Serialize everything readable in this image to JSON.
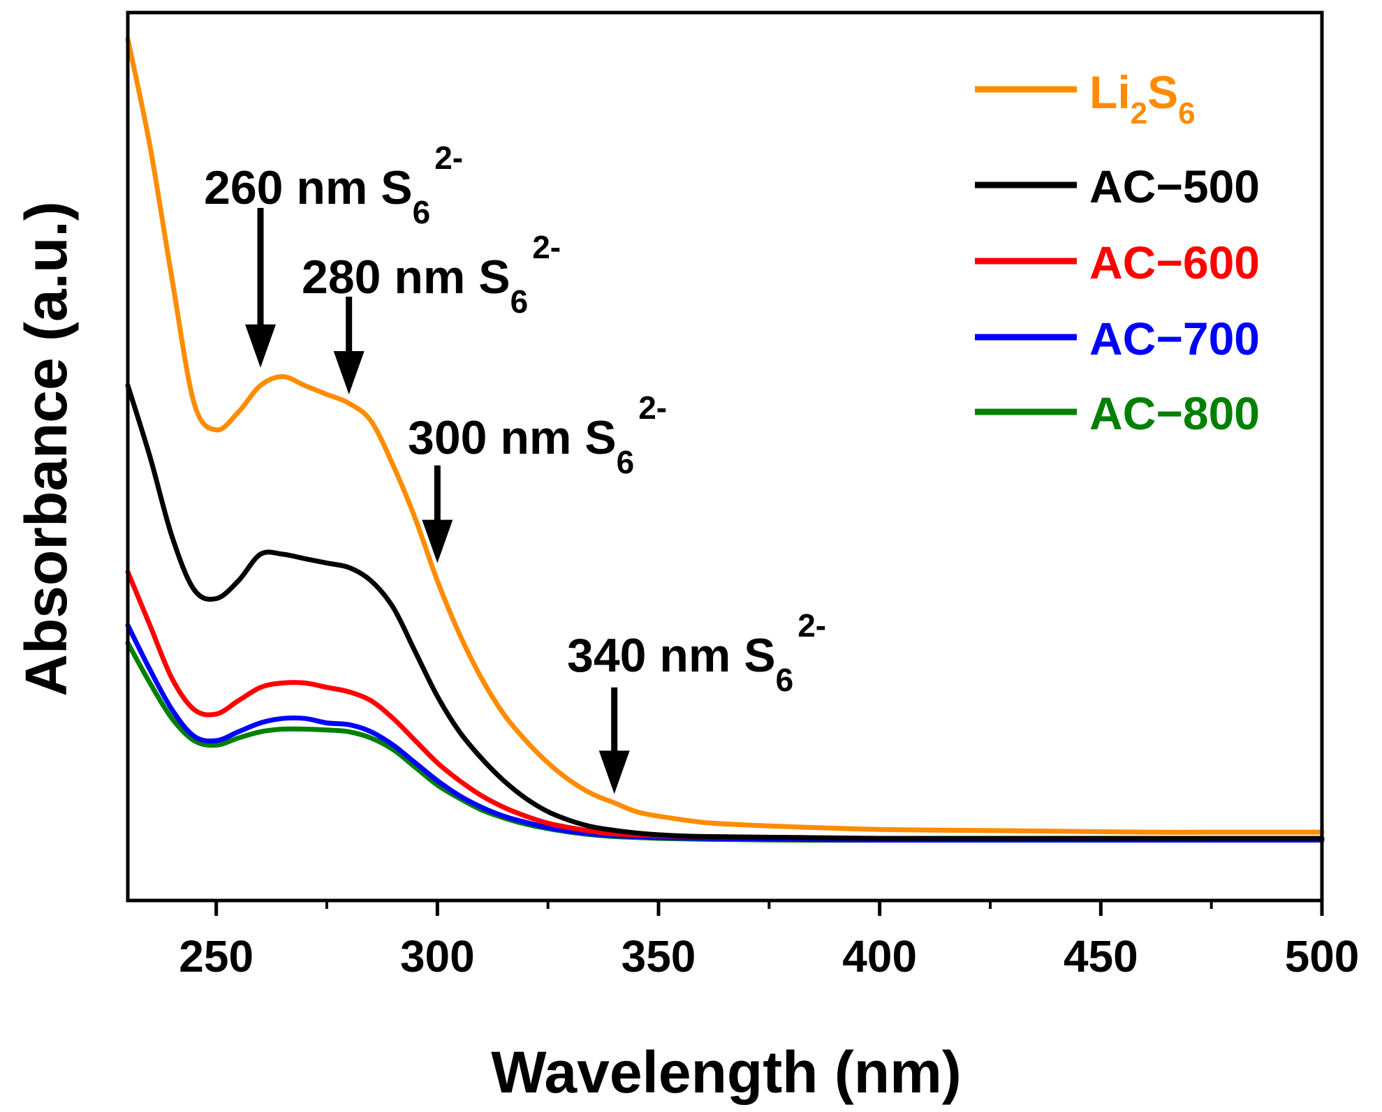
{
  "chart_data": {
    "type": "line",
    "title": "",
    "xlabel": "Wavelength (nm)",
    "ylabel": "Absorbance (a.u.)",
    "xlim": [
      230,
      500
    ],
    "ylim": [
      0,
      1
    ],
    "x_ticks": [
      250,
      300,
      350,
      400,
      450,
      500
    ],
    "x_tick_labels": [
      "250",
      "300",
      "350",
      "400",
      "450",
      "500"
    ],
    "y_ticks_labeled": false,
    "grid": false,
    "legend_position": "top-right",
    "series": [
      {
        "name": "Li2S6",
        "name_main": "Li",
        "name_sub1": "2",
        "name_mid": "S",
        "name_sub2": "6",
        "color": "#ff8c00",
        "x": [
          230,
          235,
          240,
          245,
          250,
          255,
          260,
          265,
          270,
          275,
          280,
          285,
          290,
          295,
          300,
          305,
          310,
          315,
          320,
          325,
          330,
          335,
          340,
          345,
          350,
          360,
          370,
          380,
          400,
          420,
          440,
          460,
          480,
          500
        ],
        "y": [
          0.97,
          0.85,
          0.7,
          0.56,
          0.53,
          0.55,
          0.58,
          0.59,
          0.58,
          0.57,
          0.56,
          0.54,
          0.49,
          0.43,
          0.36,
          0.3,
          0.25,
          0.21,
          0.18,
          0.155,
          0.135,
          0.12,
          0.11,
          0.1,
          0.095,
          0.088,
          0.085,
          0.083,
          0.08,
          0.079,
          0.078,
          0.077,
          0.077,
          0.077
        ]
      },
      {
        "name": "AC−500",
        "color": "#000000",
        "x": [
          230,
          235,
          240,
          245,
          250,
          255,
          260,
          265,
          270,
          275,
          280,
          285,
          290,
          295,
          300,
          305,
          310,
          315,
          320,
          325,
          330,
          335,
          340,
          345,
          350,
          360,
          380,
          400,
          450,
          500
        ],
        "y": [
          0.58,
          0.5,
          0.41,
          0.35,
          0.34,
          0.36,
          0.39,
          0.39,
          0.385,
          0.38,
          0.375,
          0.36,
          0.33,
          0.28,
          0.23,
          0.19,
          0.16,
          0.135,
          0.115,
          0.1,
          0.09,
          0.083,
          0.079,
          0.076,
          0.074,
          0.072,
          0.071,
          0.07,
          0.07,
          0.07
        ]
      },
      {
        "name": "AC−600",
        "color": "#ff0000",
        "x": [
          230,
          235,
          240,
          245,
          250,
          255,
          260,
          265,
          270,
          275,
          280,
          285,
          290,
          295,
          300,
          305,
          310,
          315,
          320,
          325,
          330,
          335,
          340,
          345,
          350,
          360,
          380,
          400,
          450,
          500
        ],
        "y": [
          0.37,
          0.31,
          0.25,
          0.215,
          0.21,
          0.225,
          0.24,
          0.245,
          0.245,
          0.24,
          0.235,
          0.225,
          0.205,
          0.18,
          0.155,
          0.135,
          0.118,
          0.105,
          0.095,
          0.087,
          0.082,
          0.078,
          0.075,
          0.074,
          0.073,
          0.072,
          0.071,
          0.07,
          0.07,
          0.07
        ]
      },
      {
        "name": "AC−700",
        "color": "#0000ff",
        "x": [
          230,
          235,
          240,
          245,
          250,
          255,
          260,
          265,
          270,
          275,
          280,
          285,
          290,
          295,
          300,
          305,
          310,
          315,
          320,
          325,
          330,
          335,
          340,
          345,
          350,
          360,
          380,
          400,
          450,
          500
        ],
        "y": [
          0.31,
          0.26,
          0.215,
          0.185,
          0.18,
          0.19,
          0.2,
          0.205,
          0.205,
          0.2,
          0.198,
          0.19,
          0.175,
          0.155,
          0.135,
          0.118,
          0.105,
          0.095,
          0.088,
          0.082,
          0.078,
          0.075,
          0.073,
          0.072,
          0.071,
          0.07,
          0.069,
          0.068,
          0.068,
          0.068
        ]
      },
      {
        "name": "AC−800",
        "color": "#008000",
        "x": [
          230,
          235,
          240,
          245,
          250,
          255,
          260,
          265,
          270,
          275,
          280,
          285,
          290,
          295,
          300,
          305,
          310,
          315,
          320,
          325,
          330,
          335,
          340,
          345,
          350,
          360,
          380,
          400,
          450,
          500
        ],
        "y": [
          0.29,
          0.245,
          0.205,
          0.18,
          0.175,
          0.183,
          0.19,
          0.193,
          0.193,
          0.192,
          0.19,
          0.183,
          0.17,
          0.15,
          0.13,
          0.115,
          0.102,
          0.093,
          0.086,
          0.081,
          0.077,
          0.074,
          0.072,
          0.071,
          0.07,
          0.069,
          0.068,
          0.068,
          0.068,
          0.068
        ]
      }
    ],
    "annotations": [
      {
        "id": "260",
        "text": "260 nm S",
        "sub": "6",
        "sup": "2-",
        "arrow_x": 260,
        "arrow_from_y": 0.78,
        "arrow_to_y": 0.6
      },
      {
        "id": "280",
        "text": "280 nm S",
        "sub": "6",
        "sup": "2-",
        "arrow_x": 280,
        "arrow_from_y": 0.68,
        "arrow_to_y": 0.57
      },
      {
        "id": "300",
        "text": "300 nm S",
        "sub": "6",
        "sup": "2-",
        "arrow_x": 300,
        "arrow_from_y": 0.49,
        "arrow_to_y": 0.38
      },
      {
        "id": "340",
        "text": "340 nm S",
        "sub": "6",
        "sup": "2-",
        "arrow_x": 340,
        "arrow_from_y": 0.24,
        "arrow_to_y": 0.12
      }
    ]
  }
}
